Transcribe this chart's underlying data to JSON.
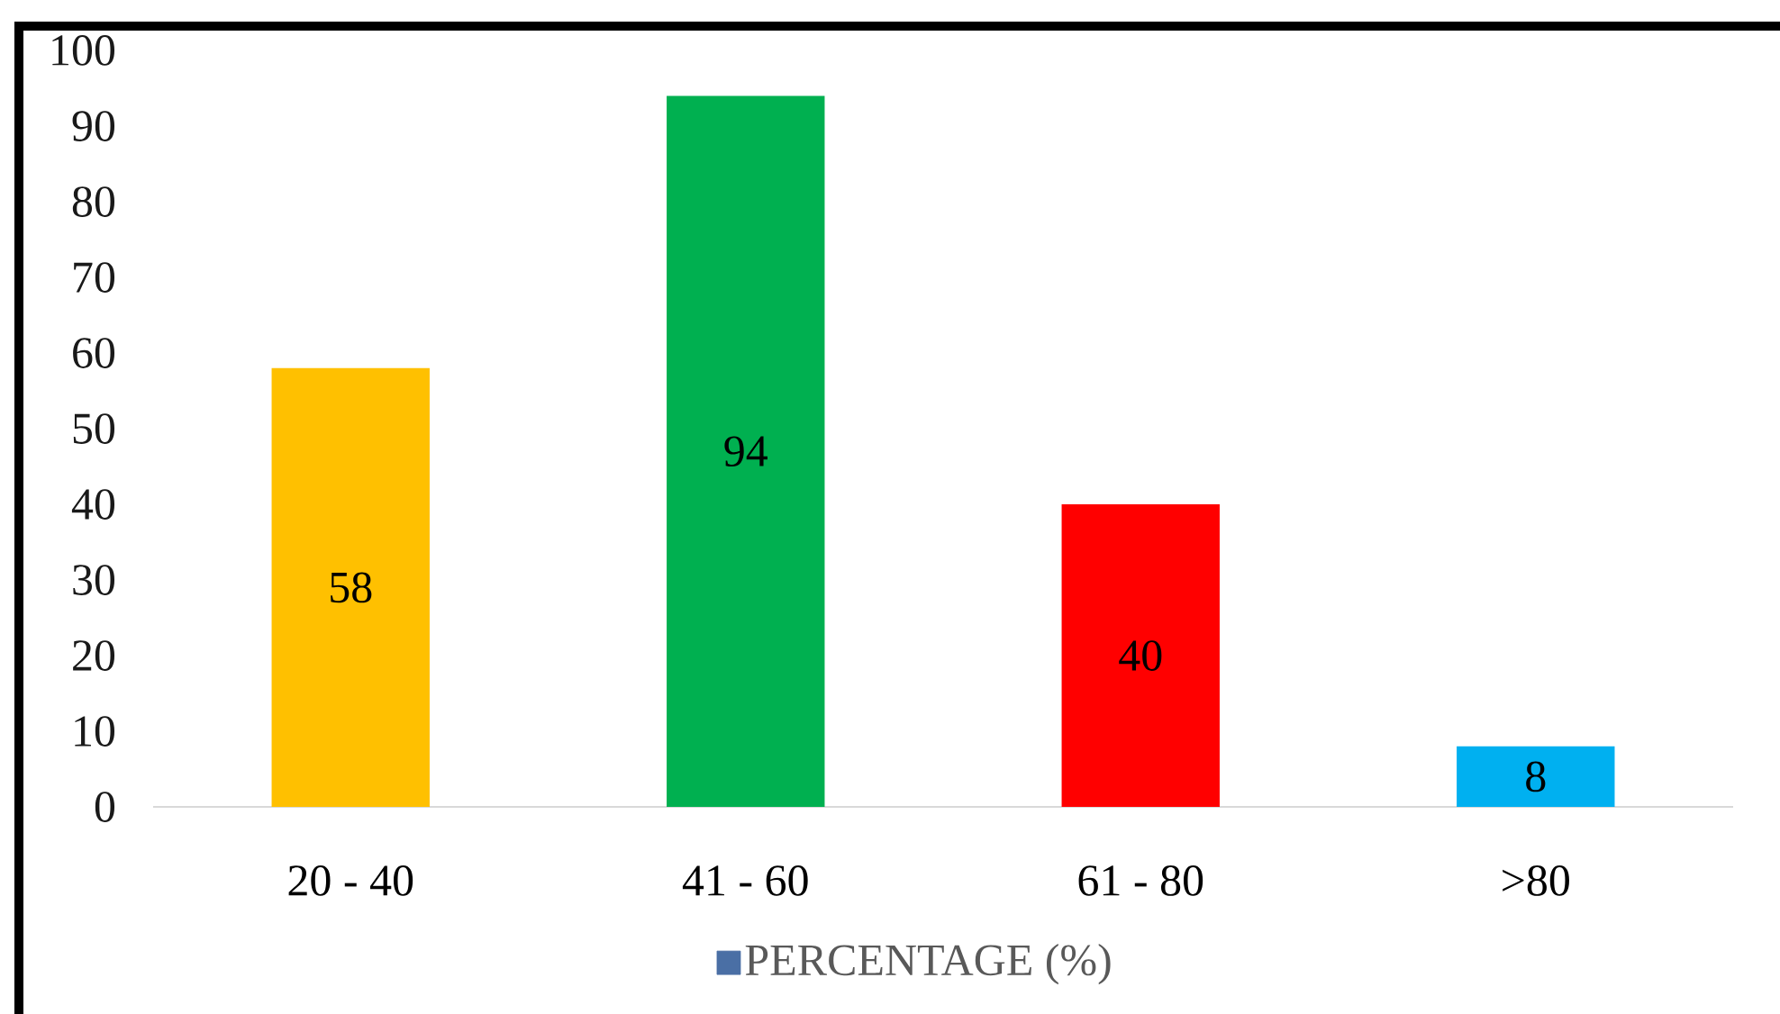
{
  "chart_data": {
    "type": "bar",
    "categories": [
      "20 - 40",
      "41 - 60",
      "61 - 80",
      ">80"
    ],
    "series": [
      {
        "name": "PERCENTAGE (%)",
        "color": "#4a6fa5",
        "colors": [
          "#ffc000",
          "#00b050",
          "#ff0000",
          "#00b0f0"
        ],
        "values": [
          58,
          94,
          40,
          8
        ]
      }
    ],
    "ylim": [
      0,
      100
    ],
    "yticks": [
      0,
      10,
      20,
      30,
      40,
      50,
      60,
      70,
      80,
      90,
      100
    ],
    "data_labels": true,
    "legend": "bottom"
  }
}
